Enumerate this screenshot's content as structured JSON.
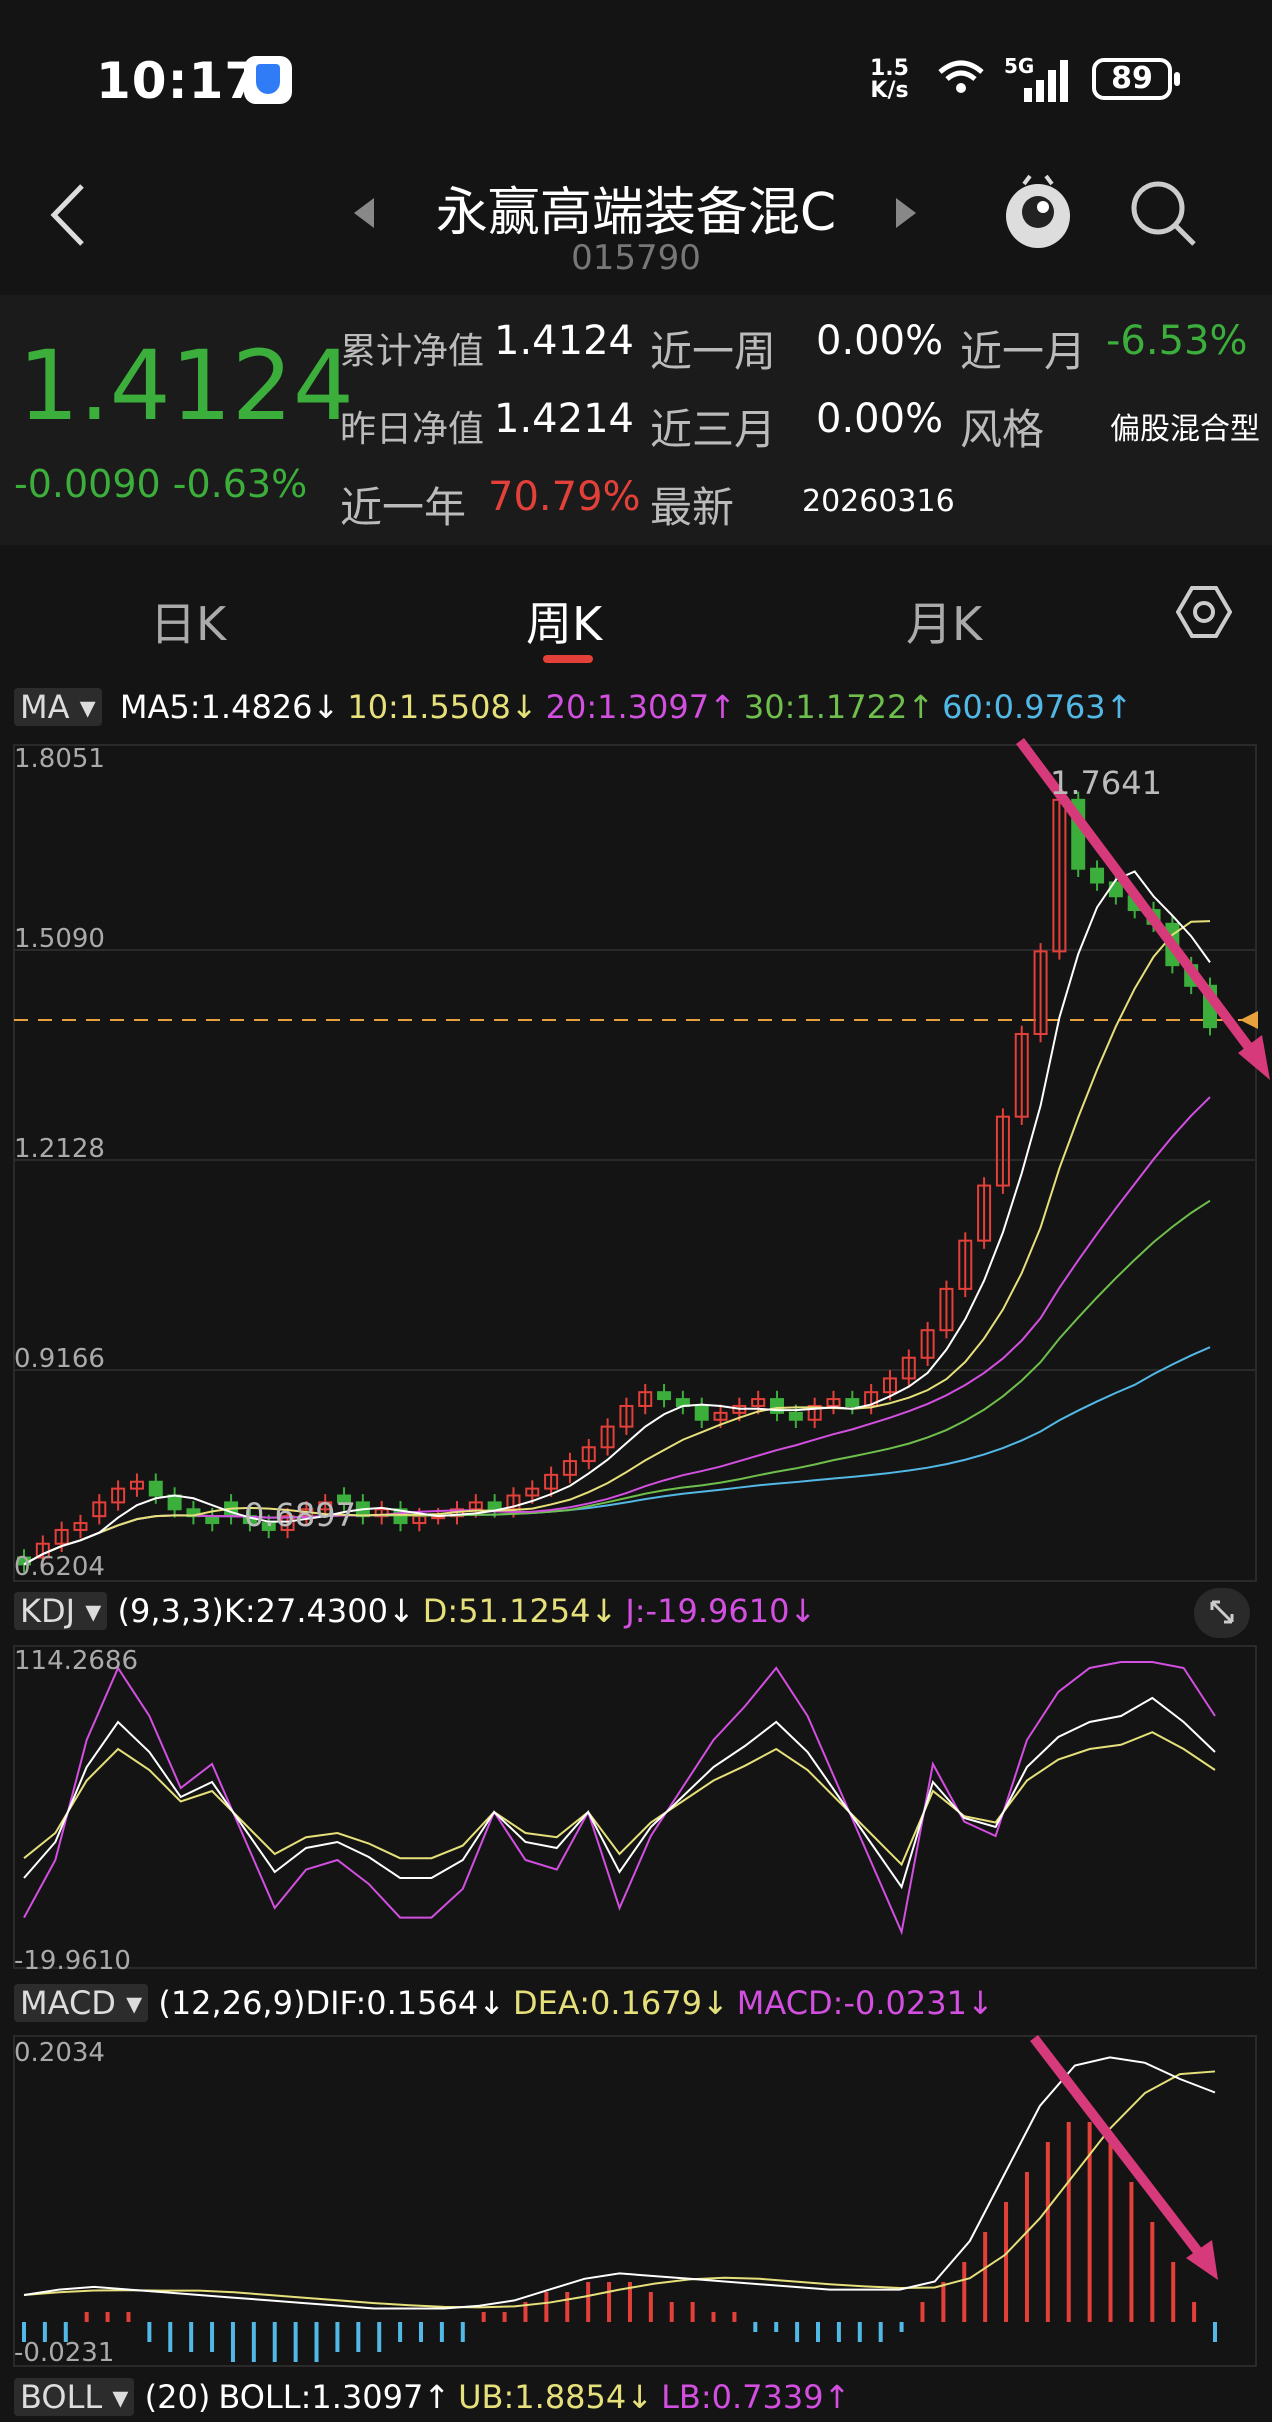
{
  "status_bar": {
    "time": "10:17",
    "net_speed": "1.5\nK/s",
    "signal": "5G",
    "battery": "89"
  },
  "header": {
    "fund_name": "永赢高端装备混C",
    "fund_code": "015790"
  },
  "quote": {
    "nav": "1.4124",
    "change": "-0.0090",
    "change_pct": "-0.63%",
    "cum_nav_label": "累计净值",
    "cum_nav": "1.4124",
    "prev_nav_label": "昨日净值",
    "prev_nav": "1.4214",
    "year_label": "近一年",
    "year_ret": "70.79%",
    "week_label": "近一周",
    "week_ret": "0.00%",
    "month3_label": "近三月",
    "month3_ret": "0.00%",
    "latest_label": "最新",
    "latest_date": "20260316",
    "month_label": "近一月",
    "month_ret": "-6.53%",
    "style_label": "风格",
    "style": "偏股混合型"
  },
  "tabs": [
    {
      "label": "日K"
    },
    {
      "label": "周K"
    },
    {
      "label": "月K"
    }
  ],
  "ma_legend": {
    "selector": "MA",
    "ma5": "MA5:1.4826↓",
    "ma10": "10:1.5508↓",
    "ma20": "20:1.3097↑",
    "ma30": "30:1.1722↑",
    "ma60": "60:0.9763↑"
  },
  "kdj_legend": {
    "selector": "KDJ",
    "params": "(9,3,3)",
    "k": "K:27.4300↓",
    "d": "D:51.1254↓",
    "j": "J:-19.9610↓"
  },
  "macd_legend": {
    "selector": "MACD",
    "params": "(12,26,9)",
    "dif": "DIF:0.1564↓",
    "dea": "DEA:0.1679↓",
    "macd": "MACD:-0.0231↓"
  },
  "boll_legend": {
    "selector": "BOLL",
    "params": "(20)",
    "boll": "BOLL:1.3097↑",
    "ub": "UB:1.8854↓",
    "lb": "LB:0.7339↑"
  },
  "price_axis": {
    "top": "1.8051",
    "l2": "1.5090",
    "l3": "1.2128",
    "l4": "0.9166",
    "bottom": "0.6204",
    "max_label": "1.7641",
    "min_label": "0.6897"
  },
  "kdj_axis": {
    "top": "114.2686",
    "bottom": "-19.9610"
  },
  "macd_axis": {
    "top": "0.2034",
    "bottom": "-0.0231"
  },
  "colors": {
    "up": "#e4403a",
    "down": "#3cae3c",
    "ma5": "#ffffff",
    "ma10": "#e6e07a",
    "ma20": "#d24fe0",
    "ma30": "#6fbf4c",
    "ma60": "#52b8e6",
    "arrow": "#d63a7a"
  },
  "chart_data": {
    "type": "candlestick",
    "ylim": [
      0.6204,
      1.8051
    ],
    "candles": [
      [
        0.63,
        0.64
      ],
      [
        0.66,
        0.64
      ],
      [
        0.68,
        0.66
      ],
      [
        0.69,
        0.68
      ],
      [
        0.72,
        0.7
      ],
      [
        0.74,
        0.72
      ],
      [
        0.75,
        0.74
      ],
      [
        0.73,
        0.75
      ],
      [
        0.71,
        0.73
      ],
      [
        0.7,
        0.71
      ],
      [
        0.69,
        0.7
      ],
      [
        0.7,
        0.72
      ],
      [
        0.69,
        0.7
      ],
      [
        0.68,
        0.69
      ],
      [
        0.7,
        0.68
      ],
      [
        0.71,
        0.7
      ],
      [
        0.72,
        0.71
      ],
      [
        0.72,
        0.73
      ],
      [
        0.7,
        0.72
      ],
      [
        0.71,
        0.7
      ],
      [
        0.69,
        0.71
      ],
      [
        0.7,
        0.69
      ],
      [
        0.7,
        0.7
      ],
      [
        0.71,
        0.7
      ],
      [
        0.72,
        0.71
      ],
      [
        0.71,
        0.72
      ],
      [
        0.73,
        0.71
      ],
      [
        0.74,
        0.73
      ],
      [
        0.76,
        0.74
      ],
      [
        0.78,
        0.76
      ],
      [
        0.8,
        0.78
      ],
      [
        0.83,
        0.8
      ],
      [
        0.86,
        0.83
      ],
      [
        0.88,
        0.86
      ],
      [
        0.87,
        0.88
      ],
      [
        0.86,
        0.87
      ],
      [
        0.84,
        0.86
      ],
      [
        0.85,
        0.84
      ],
      [
        0.86,
        0.85
      ],
      [
        0.87,
        0.86
      ],
      [
        0.85,
        0.87
      ],
      [
        0.84,
        0.85
      ],
      [
        0.86,
        0.84
      ],
      [
        0.87,
        0.86
      ],
      [
        0.86,
        0.87
      ],
      [
        0.88,
        0.86
      ],
      [
        0.9,
        0.88
      ],
      [
        0.93,
        0.9
      ],
      [
        0.97,
        0.93
      ],
      [
        1.03,
        0.97
      ],
      [
        1.1,
        1.03
      ],
      [
        1.18,
        1.1
      ],
      [
        1.28,
        1.18
      ],
      [
        1.4,
        1.28
      ],
      [
        1.52,
        1.4
      ],
      [
        1.74,
        1.52
      ],
      [
        1.64,
        1.74
      ],
      [
        1.62,
        1.64
      ],
      [
        1.6,
        1.62
      ],
      [
        1.58,
        1.6
      ],
      [
        1.56,
        1.58
      ],
      [
        1.5,
        1.56
      ],
      [
        1.47,
        1.5
      ],
      [
        1.41,
        1.47
      ]
    ]
  }
}
